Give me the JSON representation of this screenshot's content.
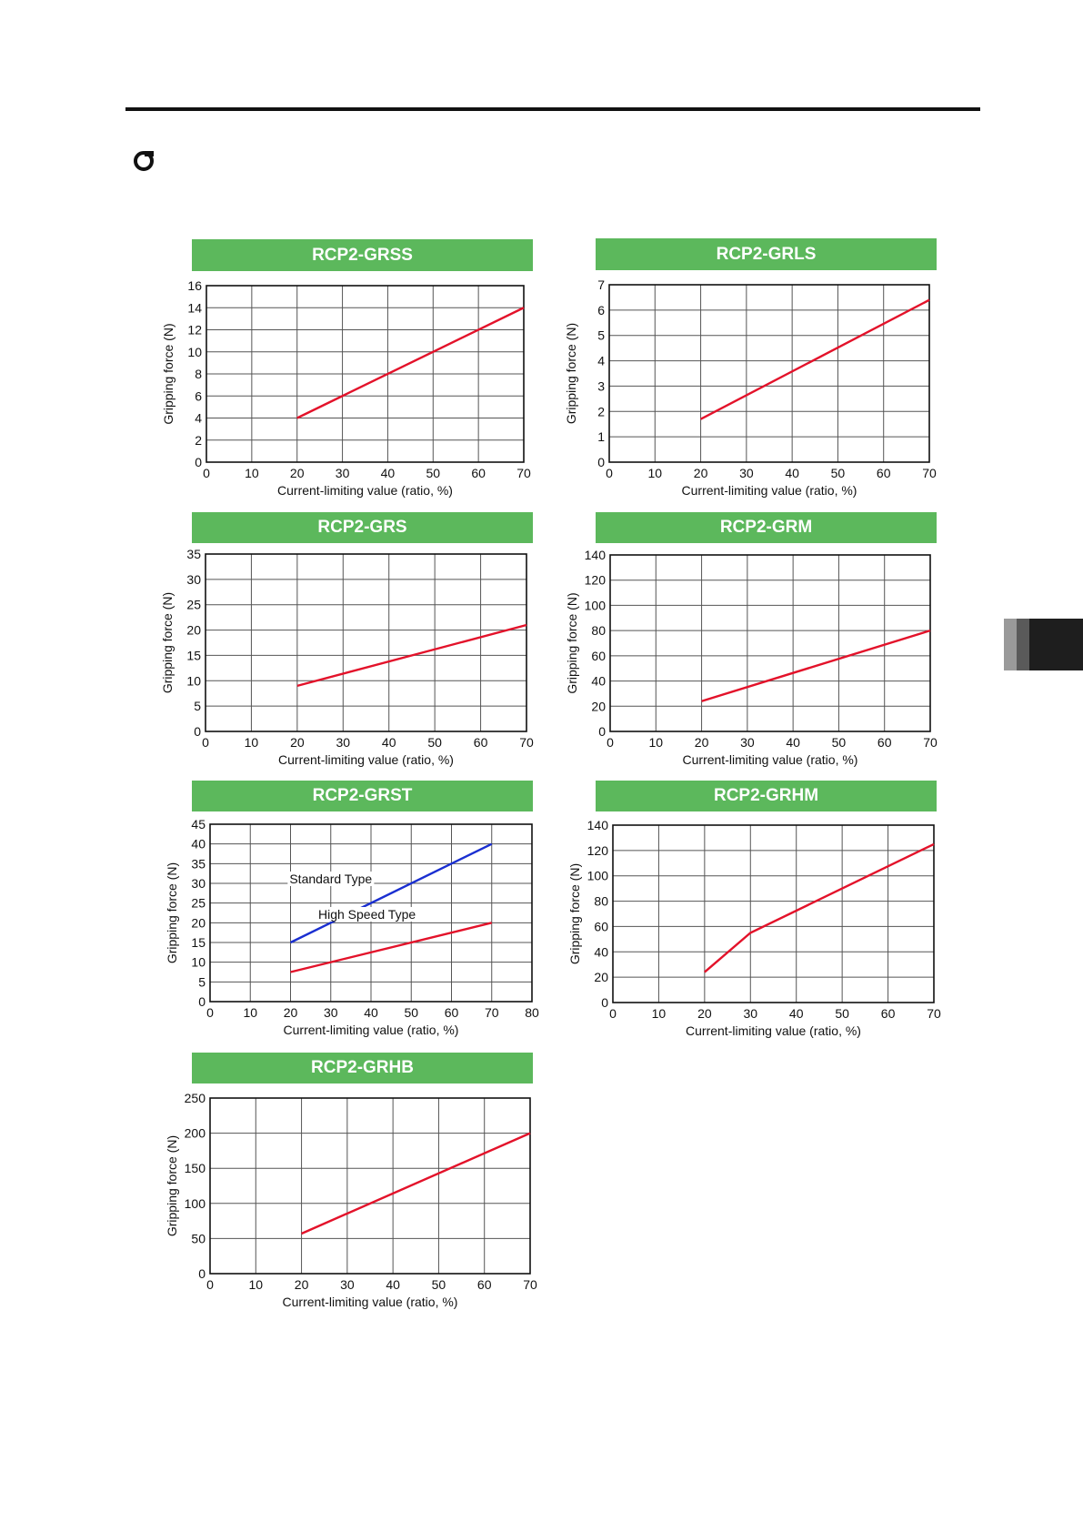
{
  "page": {
    "colors": {
      "banner": "#5cb85c",
      "line": "#e3122a",
      "line_blue": "#1a2fd1",
      "grid": "#555555"
    },
    "icons": [
      "bullet-icon"
    ]
  },
  "chart_data": [
    {
      "type": "line",
      "title": "RCP2-GRSS",
      "xlabel": "Current-limiting value (ratio, %)",
      "ylabel": "Gripping force (N)",
      "xlim": [
        0,
        70
      ],
      "ylim": [
        0,
        16
      ],
      "x_ticks": [
        0,
        10,
        20,
        30,
        40,
        50,
        60,
        70
      ],
      "y_ticks": [
        0,
        2,
        4,
        6,
        8,
        10,
        12,
        14,
        16
      ],
      "grid": true,
      "series": [
        {
          "color": "#e3122a",
          "x": [
            20,
            70
          ],
          "y": [
            4,
            14
          ]
        }
      ]
    },
    {
      "type": "line",
      "title": "RCP2-GRLS",
      "xlabel": "Current-limiting value (ratio, %)",
      "ylabel": "Gripping force (N)",
      "xlim": [
        0,
        70
      ],
      "ylim": [
        0,
        7
      ],
      "x_ticks": [
        0,
        10,
        20,
        30,
        40,
        50,
        60,
        70
      ],
      "y_ticks": [
        0,
        1,
        2,
        3,
        4,
        5,
        6,
        7
      ],
      "grid": true,
      "series": [
        {
          "color": "#e3122a",
          "x": [
            20,
            70
          ],
          "y": [
            1.7,
            6.4
          ]
        }
      ]
    },
    {
      "type": "line",
      "title": "RCP2-GRS",
      "xlabel": "Current-limiting value (ratio, %)",
      "ylabel": "Gripping force (N)",
      "xlim": [
        0,
        70
      ],
      "ylim": [
        0,
        35
      ],
      "x_ticks": [
        0,
        10,
        20,
        30,
        40,
        50,
        60,
        70
      ],
      "y_ticks": [
        0,
        5,
        10,
        15,
        20,
        25,
        30,
        35
      ],
      "grid": true,
      "series": [
        {
          "color": "#e3122a",
          "x": [
            20,
            70
          ],
          "y": [
            9,
            21
          ]
        }
      ]
    },
    {
      "type": "line",
      "title": "RCP2-GRM",
      "xlabel": "Current-limiting value (ratio, %)",
      "ylabel": "Gripping force (N)",
      "xlim": [
        0,
        70
      ],
      "ylim": [
        0,
        140
      ],
      "x_ticks": [
        0,
        10,
        20,
        30,
        40,
        50,
        60,
        70
      ],
      "y_ticks": [
        0,
        20,
        40,
        60,
        80,
        100,
        120,
        140
      ],
      "grid": true,
      "series": [
        {
          "color": "#e3122a",
          "x": [
            20,
            70
          ],
          "y": [
            24,
            80
          ]
        }
      ]
    },
    {
      "type": "line",
      "title": "RCP2-GRST",
      "xlabel": "Current-limiting value (ratio, %)",
      "ylabel": "Gripping force (N)",
      "xlim": [
        0,
        80
      ],
      "ylim": [
        0,
        45
      ],
      "x_ticks": [
        0,
        10,
        20,
        30,
        40,
        50,
        60,
        70,
        80
      ],
      "y_ticks": [
        0,
        5,
        10,
        15,
        20,
        25,
        30,
        35,
        40,
        45
      ],
      "grid": true,
      "series": [
        {
          "name": "Standard Type",
          "color": "#1a2fd1",
          "x": [
            20,
            70
          ],
          "y": [
            15,
            40
          ],
          "label_at": [
            30,
            30
          ]
        },
        {
          "name": "High Speed Type",
          "color": "#e3122a",
          "x": [
            20,
            70
          ],
          "y": [
            7.5,
            20
          ],
          "label_at": [
            39,
            21
          ]
        }
      ]
    },
    {
      "type": "line",
      "title": "RCP2-GRHM",
      "xlabel": "Current-limiting value (ratio, %)",
      "ylabel": "Gripping force (N)",
      "xlim": [
        0,
        70
      ],
      "ylim": [
        0,
        140
      ],
      "x_ticks": [
        0,
        10,
        20,
        30,
        40,
        50,
        60,
        70
      ],
      "y_ticks": [
        0,
        20,
        40,
        60,
        80,
        100,
        120,
        140
      ],
      "grid": true,
      "series": [
        {
          "color": "#e3122a",
          "x": [
            20,
            30,
            70
          ],
          "y": [
            24,
            55,
            125
          ]
        }
      ]
    },
    {
      "type": "line",
      "title": "RCP2-GRHB",
      "xlabel": "Current-limiting value (ratio, %)",
      "ylabel": "Gripping force (N)",
      "xlim": [
        0,
        70
      ],
      "ylim": [
        0,
        250
      ],
      "x_ticks": [
        0,
        10,
        20,
        30,
        40,
        50,
        60,
        70
      ],
      "y_ticks": [
        0,
        50,
        100,
        150,
        200,
        250
      ],
      "grid": true,
      "series": [
        {
          "color": "#e3122a",
          "x": [
            20,
            70
          ],
          "y": [
            57,
            200
          ]
        }
      ]
    }
  ]
}
